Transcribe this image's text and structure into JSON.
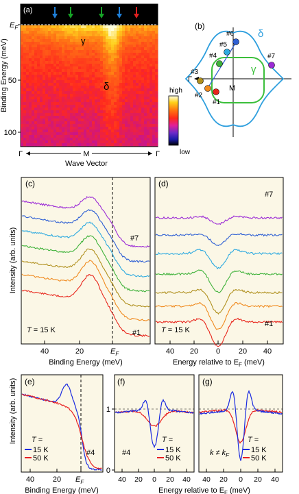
{
  "panels": {
    "a": {
      "label": "(a)",
      "ylabel": "Binding Energy (meV)",
      "xlabel": "Wave Vector",
      "ef_label": "E",
      "ef_sub": "F",
      "yticks": [
        "50",
        "100"
      ],
      "xticks": [
        "Γ",
        "M",
        "Γ"
      ],
      "band_labels": [
        "γ",
        "δ"
      ],
      "colorbar_high": "high",
      "colorbar_low": "low",
      "arrow_colors": [
        "#1f7fd8",
        "#16a326",
        "#16a326",
        "#1f7fd8",
        "#e02020"
      ]
    },
    "b": {
      "label": "(b)",
      "delta": "δ",
      "gamma": "γ",
      "gamma_point": "Γ",
      "m_point": "M",
      "points": [
        "#1",
        "#2",
        "#3",
        "#4",
        "#5",
        "#6",
        "#7"
      ],
      "point_colors": [
        "#e8261c",
        "#f08a1e",
        "#b0901e",
        "#3fb23a",
        "#2eaae0",
        "#2e5fd4",
        "#9b2bd6"
      ]
    },
    "c": {
      "label": "(c)",
      "xlabel": "Binding Energy (meV)",
      "ylabel": "Intensity (arb. units)",
      "xticks": [
        "40",
        "20",
        "E"
      ],
      "temp_prefix": "T",
      "temp_text": " = 15 K",
      "top_label": "#7",
      "bottom_label": "#1"
    },
    "d": {
      "label": "(d)",
      "xlabel": "Energy relative to E",
      "xlabel_sub": "F",
      "xlabel_unit": " (meV)",
      "xticks": [
        "40",
        "20",
        "0",
        "20",
        "40"
      ],
      "temp_prefix": "T",
      "temp_text": " = 15 K",
      "top_label": "#7",
      "bottom_label": "#1"
    },
    "e": {
      "label": "(e)",
      "xlabel": "Binding Energy (meV)",
      "ylabel": "Intensity (arb. units)",
      "xticks": [
        "40",
        "20",
        "E"
      ],
      "temp_prefix": "T",
      "temp_eq": " =",
      "legend": [
        "15 K",
        "50 K"
      ],
      "point": "#4"
    },
    "f": {
      "label": "(f)",
      "yticks": [
        "1",
        "0"
      ],
      "xticks": [
        "40",
        "20",
        "0",
        "20",
        "40"
      ],
      "temp_prefix": "T",
      "temp_eq": " =",
      "legend": [
        "15 K",
        "50 K"
      ],
      "point": "#4",
      "xlabel": "Energy relative to E",
      "xlabel_sub": "F",
      "xlabel_unit": " (meV)"
    },
    "g": {
      "label": "(g)",
      "xticks": [
        "40",
        "20",
        "0",
        "20",
        "40"
      ],
      "temp_prefix": "T",
      "temp_eq": " =",
      "legend": [
        "15 K",
        "50 K"
      ],
      "k_text": "k ≠ k",
      "k_sub": "F"
    }
  },
  "colors": {
    "series": [
      "#e8261c",
      "#f08a1e",
      "#b0901e",
      "#3fb23a",
      "#2eaae0",
      "#2e5fd4",
      "#9b2bd6"
    ],
    "blue": "#1a2ae0",
    "red": "#e82020",
    "panel_bg": "#fbf7e6"
  },
  "chart_data": [
    {
      "type": "heatmap",
      "panel": "a",
      "ylabel": "Binding Energy (meV)",
      "xlabel": "Wave Vector",
      "xticks": [
        "Γ",
        "M",
        "Γ"
      ],
      "yticks": [
        50,
        100
      ],
      "ylim": [
        0,
        115
      ],
      "colorbar": [
        "high",
        "low"
      ]
    },
    {
      "type": "line",
      "panel": "c",
      "xlabel": "Binding Energy (meV)",
      "ylabel": "Intensity (arb. units)",
      "xlim": [
        50,
        -15
      ],
      "series": [
        {
          "name": "#1",
          "color": "#e8261c",
          "peak": 12,
          "gap": 10
        },
        {
          "name": "#2",
          "color": "#f08a1e",
          "peak": 12,
          "gap": 10
        },
        {
          "name": "#3",
          "color": "#b0901e",
          "peak": 12,
          "gap": 9
        },
        {
          "name": "#4",
          "color": "#3fb23a",
          "peak": 11,
          "gap": 8
        },
        {
          "name": "#5",
          "color": "#2eaae0",
          "peak": 11,
          "gap": 6
        },
        {
          "name": "#6",
          "color": "#2e5fd4",
          "peak": 10,
          "gap": 5
        },
        {
          "name": "#7",
          "color": "#9b2bd6",
          "peak": 10,
          "gap": 3
        }
      ]
    },
    {
      "type": "line",
      "panel": "d",
      "xlabel": "Energy relative to EF (meV)",
      "xlim": [
        -50,
        50
      ],
      "series": [
        {
          "name": "#1",
          "dip_depth": 0.55
        },
        {
          "name": "#2",
          "dip_depth": 0.55
        },
        {
          "name": "#3",
          "dip_depth": 0.5
        },
        {
          "name": "#4",
          "dip_depth": 0.45
        },
        {
          "name": "#5",
          "dip_depth": 0.35
        },
        {
          "name": "#6",
          "dip_depth": 0.25
        },
        {
          "name": "#7",
          "dip_depth": 0.15
        }
      ]
    },
    {
      "type": "line",
      "panel": "e",
      "xlabel": "Binding Energy (meV)",
      "xlim": [
        50,
        -15
      ],
      "series": [
        {
          "name": "15 K",
          "color": "#1a2ae0"
        },
        {
          "name": "50 K",
          "color": "#e82020"
        }
      ]
    },
    {
      "type": "line",
      "panel": "f",
      "xlim": [
        -50,
        50
      ],
      "ylim": [
        0,
        1.3
      ],
      "series": [
        {
          "name": "15 K",
          "min": 0.4,
          "peak": 1.05
        },
        {
          "name": "50 K",
          "min": 0.75,
          "peak": 1.0
        }
      ]
    },
    {
      "type": "line",
      "panel": "g",
      "xlim": [
        -50,
        50
      ],
      "ylim": [
        0,
        1.3
      ],
      "series": [
        {
          "name": "15 K",
          "min": 0.2,
          "peak": 1.2
        },
        {
          "name": "50 K",
          "min": 0.5,
          "peak": 1.0
        }
      ]
    }
  ]
}
